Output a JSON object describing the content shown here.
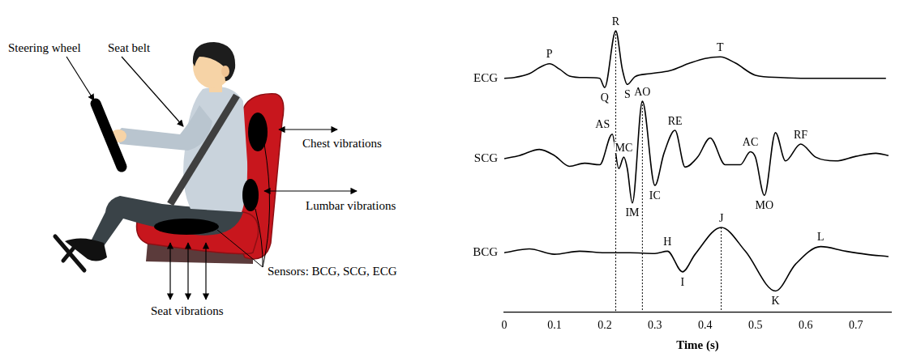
{
  "diagram": {
    "labels": {
      "steering_wheel": "Steering wheel",
      "seat_belt": "Seat belt",
      "chest": "Chest vibrations",
      "lumbar": "Lumbar vibrations",
      "sensors": "Sensors: BCG, SCG, ECG",
      "seat": "Seat vibrations"
    }
  },
  "chart_data": {
    "type": "line",
    "x_label": "Time (s)",
    "xlim": [
      0,
      0.77
    ],
    "xticks": [
      0,
      0.1,
      0.2,
      0.3,
      0.4,
      0.5,
      0.6,
      0.7
    ],
    "tick_labels": "x",
    "grid": false,
    "series": [
      {
        "name": "ECG",
        "color": "#000000",
        "x": [
          0,
          0.02,
          0.05,
          0.07,
          0.09,
          0.11,
          0.13,
          0.16,
          0.19,
          0.2,
          0.222,
          0.235,
          0.245,
          0.26,
          0.29,
          0.33,
          0.37,
          0.4,
          0.43,
          0.46,
          0.5,
          0.55,
          0.6,
          0.65,
          0.7,
          0.76
        ],
        "values": [
          30.8,
          30.9,
          31.4,
          32.2,
          32.7,
          32.0,
          31.1,
          30.9,
          30.8,
          29.6,
          37.0,
          32.0,
          30.0,
          31.0,
          31.4,
          31.8,
          32.8,
          33.4,
          33.6,
          32.8,
          31.2,
          30.9,
          30.8,
          30.8,
          30.8,
          30.8
        ]
      },
      {
        "name": "SCG",
        "color": "#000000",
        "x": [
          0,
          0.03,
          0.07,
          0.1,
          0.13,
          0.16,
          0.19,
          0.215,
          0.228,
          0.238,
          0.245,
          0.255,
          0.275,
          0.3,
          0.318,
          0.34,
          0.36,
          0.385,
          0.41,
          0.44,
          0.47,
          0.49,
          0.5,
          0.518,
          0.54,
          0.56,
          0.59,
          0.62,
          0.66,
          0.7,
          0.74,
          0.765
        ],
        "values": [
          20.3,
          20.7,
          21.5,
          20.7,
          19.3,
          19.7,
          19.5,
          23.5,
          19.0,
          20.5,
          19.0,
          14.5,
          27.8,
          16.8,
          21.0,
          24.0,
          19.2,
          20.5,
          23.0,
          19.5,
          19.5,
          21.2,
          20.5,
          15.5,
          23.7,
          20.0,
          22.2,
          20.5,
          20.0,
          20.6,
          21.0,
          20.7
        ]
      },
      {
        "name": "BCG",
        "color": "#000000",
        "x": [
          0,
          0.05,
          0.1,
          0.15,
          0.2,
          0.25,
          0.3,
          0.325,
          0.355,
          0.38,
          0.432,
          0.48,
          0.54,
          0.58,
          0.63,
          0.68,
          0.72,
          0.765
        ],
        "values": [
          8.0,
          8.5,
          7.8,
          8.2,
          8.0,
          8.0,
          7.9,
          8.2,
          5.5,
          7.8,
          11.3,
          8.2,
          3.0,
          6.5,
          8.8,
          8.2,
          7.8,
          7.5
        ]
      }
    ],
    "annotations": [
      {
        "text": "P",
        "series": "ECG",
        "x": 0.09,
        "side": "above"
      },
      {
        "text": "Q",
        "series": "ECG",
        "x": 0.2,
        "side": "below"
      },
      {
        "text": "R",
        "series": "ECG",
        "x": 0.222,
        "side": "above"
      },
      {
        "text": "S",
        "series": "ECG",
        "x": 0.245,
        "side": "below"
      },
      {
        "text": "T",
        "series": "ECG",
        "x": 0.43,
        "side": "above"
      },
      {
        "text": "AS",
        "series": "SCG",
        "x": 0.215,
        "side": "above-left"
      },
      {
        "text": "MC",
        "series": "SCG",
        "x": 0.238,
        "side": "above"
      },
      {
        "text": "IM",
        "series": "SCG",
        "x": 0.255,
        "side": "below"
      },
      {
        "text": "AO",
        "series": "SCG",
        "x": 0.275,
        "side": "above"
      },
      {
        "text": "IC",
        "series": "SCG",
        "x": 0.3,
        "side": "below"
      },
      {
        "text": "RE",
        "series": "SCG",
        "x": 0.34,
        "side": "above"
      },
      {
        "text": "AC",
        "series": "SCG",
        "x": 0.49,
        "side": "above"
      },
      {
        "text": "MO",
        "series": "SCG",
        "x": 0.518,
        "side": "below"
      },
      {
        "text": "RF",
        "series": "SCG",
        "x": 0.59,
        "side": "above"
      },
      {
        "text": "H",
        "series": "BCG",
        "x": 0.325,
        "side": "above"
      },
      {
        "text": "I",
        "series": "BCG",
        "x": 0.355,
        "side": "below"
      },
      {
        "text": "J",
        "series": "BCG",
        "x": 0.432,
        "side": "above"
      },
      {
        "text": "K",
        "series": "BCG",
        "x": 0.54,
        "side": "below"
      },
      {
        "text": "L",
        "series": "BCG",
        "x": 0.63,
        "side": "above"
      }
    ],
    "vlines": [
      {
        "series": "ECG",
        "x": 0.222
      },
      {
        "series": "SCG",
        "x": 0.275
      },
      {
        "series": "BCG",
        "x": 0.432
      }
    ]
  }
}
